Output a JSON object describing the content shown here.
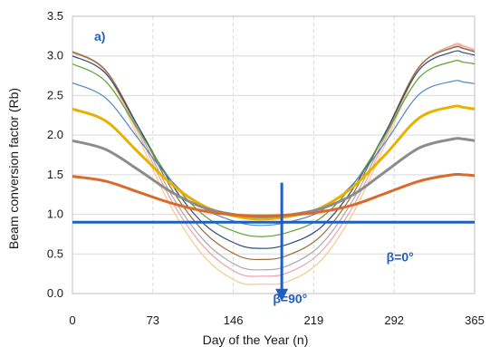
{
  "chart_data": {
    "type": "line",
    "panel_label": "a)",
    "xlabel": "Day of the Year (n)",
    "ylabel": "Beam conversion factor (Rb)",
    "xlim": [
      0,
      365
    ],
    "ylim": [
      0.0,
      3.5
    ],
    "xticks": [
      0,
      73,
      146,
      219,
      292,
      365
    ],
    "yticks": [
      "0.0",
      "0.5",
      "1.0",
      "1.5",
      "2.0",
      "2.5",
      "3.0",
      "3.5"
    ],
    "grid": true,
    "x": [
      0,
      30,
      60,
      90,
      120,
      150,
      172,
      195,
      225,
      255,
      285,
      315,
      345,
      355,
      365
    ],
    "series": [
      {
        "color": "#1f5fc0",
        "width": 3,
        "values": [
          0.9,
          0.9,
          0.9,
          0.9,
          0.9,
          0.9,
          0.9,
          0.9,
          0.9,
          0.9,
          0.9,
          0.9,
          0.9,
          0.9,
          0.9
        ]
      },
      {
        "color": "#d96a2a",
        "width": 3,
        "values": [
          1.48,
          1.42,
          1.28,
          1.14,
          1.04,
          0.99,
          0.98,
          0.99,
          1.03,
          1.12,
          1.27,
          1.42,
          1.5,
          1.5,
          1.49
        ]
      },
      {
        "color": "#8c8c8c",
        "width": 3,
        "values": [
          1.93,
          1.82,
          1.56,
          1.28,
          1.08,
          0.99,
          0.97,
          0.99,
          1.07,
          1.25,
          1.55,
          1.84,
          1.95,
          1.95,
          1.93
        ]
      },
      {
        "color": "#e8b100",
        "width": 3,
        "values": [
          2.33,
          2.18,
          1.78,
          1.38,
          1.1,
          0.97,
          0.94,
          0.97,
          1.08,
          1.35,
          1.77,
          2.22,
          2.36,
          2.35,
          2.33
        ]
      },
      {
        "color": "#4a86c8",
        "width": 1.2,
        "values": [
          2.66,
          2.47,
          1.95,
          1.42,
          1.07,
          0.9,
          0.86,
          0.9,
          1.04,
          1.39,
          1.93,
          2.52,
          2.68,
          2.67,
          2.65
        ]
      },
      {
        "color": "#5aa02c",
        "width": 1.2,
        "values": [
          2.9,
          2.68,
          2.06,
          1.42,
          0.98,
          0.77,
          0.72,
          0.77,
          0.95,
          1.38,
          2.03,
          2.73,
          2.93,
          2.92,
          2.9
        ]
      },
      {
        "color": "#2e4a7a",
        "width": 1.2,
        "values": [
          3.0,
          2.78,
          2.1,
          1.38,
          0.87,
          0.62,
          0.57,
          0.62,
          0.83,
          1.33,
          2.06,
          2.83,
          3.05,
          3.04,
          3.01
        ]
      },
      {
        "color": "#9b6b3a",
        "width": 1.2,
        "values": [
          3.05,
          2.82,
          2.1,
          1.32,
          0.77,
          0.48,
          0.43,
          0.48,
          0.72,
          1.27,
          2.06,
          2.87,
          3.1,
          3.09,
          3.05
        ]
      },
      {
        "color": "#a9a9a9",
        "width": 1.2,
        "values": [
          3.06,
          2.82,
          2.06,
          1.24,
          0.66,
          0.35,
          0.3,
          0.35,
          0.61,
          1.19,
          2.02,
          2.87,
          3.11,
          3.1,
          3.06
        ]
      },
      {
        "color": "#f0a0a8",
        "width": 1.2,
        "values": [
          3.05,
          2.81,
          2.02,
          1.17,
          0.58,
          0.26,
          0.22,
          0.26,
          0.52,
          1.11,
          1.98,
          2.86,
          3.13,
          3.12,
          3.08
        ]
      },
      {
        "color": "#f7c98a",
        "width": 1.2,
        "values": [
          3.04,
          2.8,
          1.96,
          1.08,
          0.46,
          0.15,
          0.12,
          0.15,
          0.41,
          1.02,
          1.92,
          2.85,
          3.14,
          3.13,
          3.07
        ]
      }
    ],
    "annotations": {
      "beta_min": "β=0°",
      "beta_max": "β=90°",
      "accent": "#1f5fc0"
    },
    "arrow": {
      "x": 190,
      "y_from": 1.4,
      "y_to": -0.1
    }
  }
}
